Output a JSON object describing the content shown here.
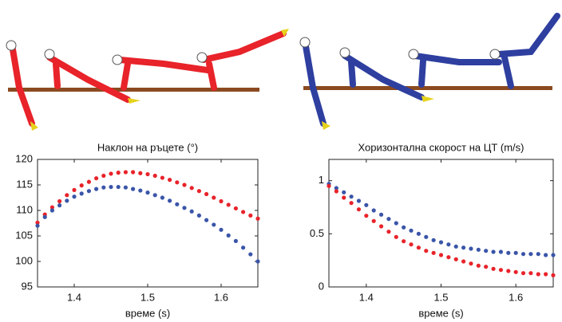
{
  "chart_data": [
    {
      "type": "scatter",
      "title": "Наклон на ръцете (°)",
      "x_label": "време  (s)",
      "x": [
        1.35,
        1.36,
        1.37,
        1.38,
        1.39,
        1.4,
        1.41,
        1.42,
        1.43,
        1.44,
        1.45,
        1.46,
        1.47,
        1.48,
        1.49,
        1.5,
        1.51,
        1.52,
        1.53,
        1.54,
        1.55,
        1.56,
        1.57,
        1.58,
        1.59,
        1.6,
        1.61,
        1.62,
        1.63,
        1.64,
        1.65
      ],
      "series": [
        {
          "color": "#e8232a",
          "values": [
            107.6,
            109.2,
            110.6,
            111.8,
            113.0,
            114.0,
            114.9,
            115.6,
            116.3,
            116.8,
            117.2,
            117.4,
            117.5,
            117.5,
            117.3,
            117.1,
            116.8,
            116.4,
            116.0,
            115.5,
            115.0,
            114.4,
            113.8,
            113.2,
            112.5,
            111.8,
            111.1,
            110.4,
            109.7,
            109.0,
            108.4
          ]
        },
        {
          "color": "#3a55a8",
          "values": [
            107.0,
            108.7,
            110.0,
            111.0,
            111.9,
            112.7,
            113.3,
            113.8,
            114.2,
            114.5,
            114.6,
            114.6,
            114.5,
            114.2,
            113.9,
            113.5,
            113.0,
            112.5,
            111.9,
            111.2,
            110.5,
            109.8,
            109.0,
            108.1,
            107.2,
            106.2,
            105.1,
            104.0,
            102.7,
            101.4,
            100.0
          ]
        }
      ],
      "xlim": [
        1.35,
        1.65
      ],
      "xticks": [
        1.4,
        1.5,
        1.6
      ],
      "ylim": [
        95,
        120
      ],
      "yticks": [
        95,
        100,
        105,
        110,
        115,
        120
      ]
    },
    {
      "type": "scatter",
      "title": "Хоризонтална скорост на ЦТ (m/s)",
      "x_label": "време  (s)",
      "x": [
        1.35,
        1.36,
        1.37,
        1.38,
        1.39,
        1.4,
        1.41,
        1.42,
        1.43,
        1.44,
        1.45,
        1.46,
        1.47,
        1.48,
        1.49,
        1.5,
        1.51,
        1.52,
        1.53,
        1.54,
        1.55,
        1.56,
        1.57,
        1.58,
        1.59,
        1.6,
        1.61,
        1.62,
        1.63,
        1.64,
        1.65
      ],
      "series": [
        {
          "color": "#3a55a8",
          "values": [
            0.97,
            0.93,
            0.89,
            0.85,
            0.81,
            0.77,
            0.72,
            0.68,
            0.64,
            0.6,
            0.56,
            0.53,
            0.5,
            0.47,
            0.44,
            0.42,
            0.4,
            0.38,
            0.37,
            0.36,
            0.35,
            0.34,
            0.33,
            0.33,
            0.32,
            0.32,
            0.31,
            0.31,
            0.31,
            0.3,
            0.3
          ]
        },
        {
          "color": "#e8232a",
          "values": [
            0.95,
            0.9,
            0.84,
            0.79,
            0.73,
            0.67,
            0.62,
            0.57,
            0.52,
            0.47,
            0.43,
            0.4,
            0.37,
            0.34,
            0.32,
            0.3,
            0.28,
            0.26,
            0.24,
            0.22,
            0.2,
            0.19,
            0.17,
            0.16,
            0.15,
            0.14,
            0.13,
            0.13,
            0.12,
            0.12,
            0.11
          ]
        }
      ],
      "xlim": [
        1.35,
        1.65
      ],
      "xticks": [
        1.4,
        1.5,
        1.6
      ],
      "ylim": [
        0,
        1.2
      ],
      "yticks": [
        0,
        0.5,
        1
      ]
    }
  ]
}
